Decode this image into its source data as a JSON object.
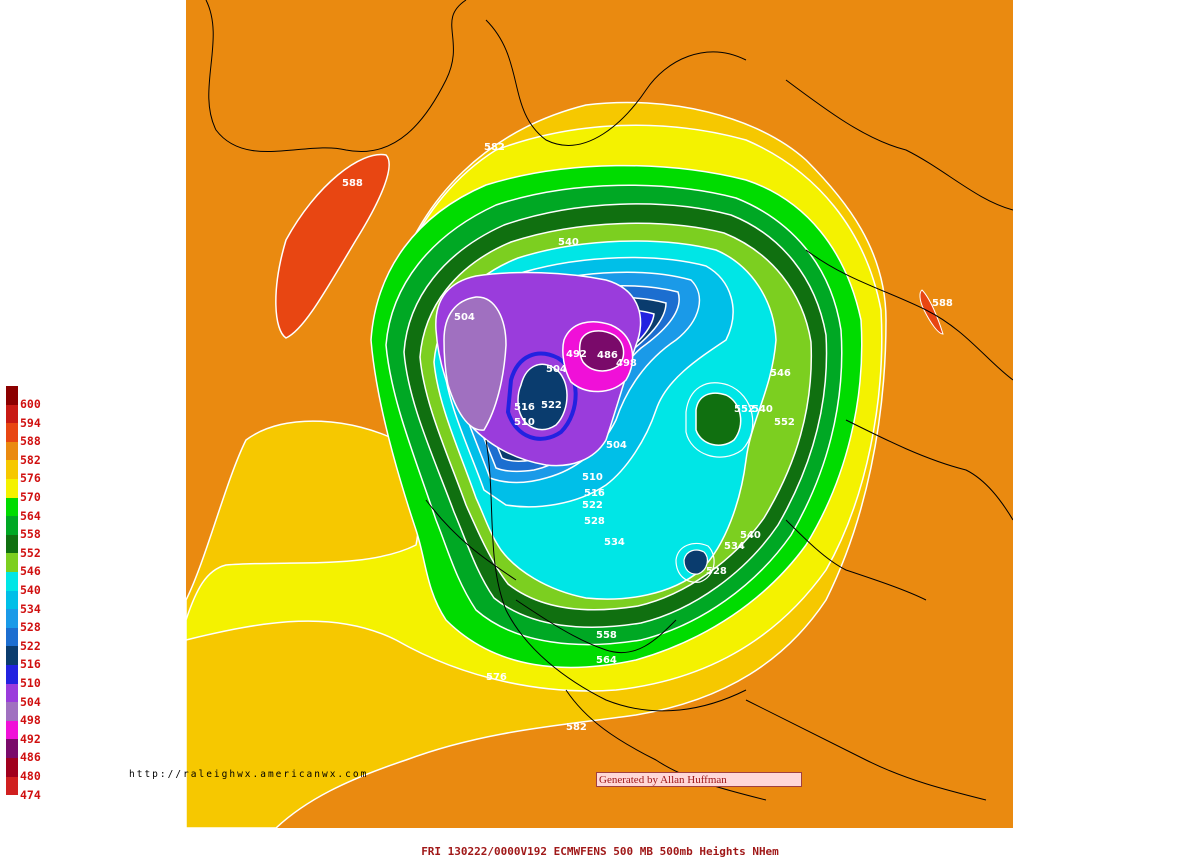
{
  "legend": {
    "levels": [
      {
        "value": "600",
        "color": "#8b0000"
      },
      {
        "value": "594",
        "color": "#c81a14"
      },
      {
        "value": "588",
        "color": "#e84612"
      },
      {
        "value": "582",
        "color": "#ea8a10"
      },
      {
        "value": "576",
        "color": "#f6c800"
      },
      {
        "value": "570",
        "color": "#f4f200"
      },
      {
        "value": "564",
        "color": "#00dc00"
      },
      {
        "value": "558",
        "color": "#00a824"
      },
      {
        "value": "552",
        "color": "#107010"
      },
      {
        "value": "546",
        "color": "#7ccf20"
      },
      {
        "value": "540",
        "color": "#00e6e6"
      },
      {
        "value": "534",
        "color": "#00bfe8"
      },
      {
        "value": "528",
        "color": "#1a9ae8"
      },
      {
        "value": "522",
        "color": "#1c6ed0"
      },
      {
        "value": "516",
        "color": "#0a3c6e"
      },
      {
        "value": "510",
        "color": "#2222e0"
      },
      {
        "value": "504",
        "color": "#9a3cdc"
      },
      {
        "value": "498",
        "color": "#a070c0"
      },
      {
        "value": "492",
        "color": "#f010d8"
      },
      {
        "value": "486",
        "color": "#7a0a6a"
      },
      {
        "value": "480",
        "color": "#a0001e"
      },
      {
        "value": "474",
        "color": "#d02020"
      }
    ]
  },
  "contour_labels": [
    {
      "text": "588"
    },
    {
      "text": "582"
    },
    {
      "text": "540"
    },
    {
      "text": "504"
    },
    {
      "text": "486"
    },
    {
      "text": "492"
    },
    {
      "text": "498"
    },
    {
      "text": "504"
    },
    {
      "text": "516"
    },
    {
      "text": "522"
    },
    {
      "text": "510"
    },
    {
      "text": "504"
    },
    {
      "text": "510"
    },
    {
      "text": "516"
    },
    {
      "text": "522"
    },
    {
      "text": "528"
    },
    {
      "text": "534"
    },
    {
      "text": "540"
    },
    {
      "text": "534"
    },
    {
      "text": "528"
    },
    {
      "text": "552"
    },
    {
      "text": "540"
    },
    {
      "text": "546"
    },
    {
      "text": "552"
    },
    {
      "text": "558"
    },
    {
      "text": "564"
    },
    {
      "text": "576"
    },
    {
      "text": "582"
    },
    {
      "text": "588"
    }
  ],
  "credits": {
    "url": "http://raleighwx.americanwx.com",
    "generated_by": "Generated by Allan Huffman"
  },
  "footer": {
    "title": "FRI 130222/0000V192  ECMWFENS  500 MB 500mb Heights NHem"
  }
}
